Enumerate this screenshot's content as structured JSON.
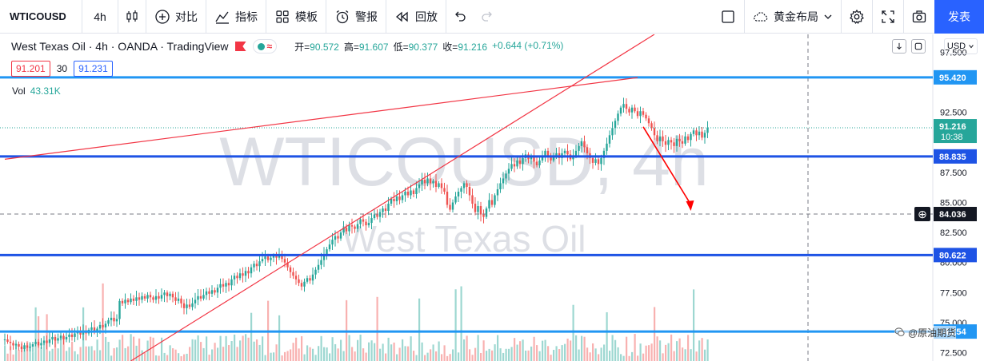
{
  "toolbar": {
    "symbol": "WTICOUSD",
    "interval": "4h",
    "compare_label": "对比",
    "indicators_label": "指标",
    "templates_label": "模板",
    "alert_label": "警报",
    "replay_label": "回放",
    "layout_label": "黄金布局",
    "publish_label": "发表"
  },
  "legend": {
    "title": "West Texas Oil · 4h · OANDA · TradingView",
    "open_label": "开=",
    "open": "90.572",
    "high_label": "高=",
    "high": "91.607",
    "low_label": "低=",
    "low": "90.377",
    "close_label": "收=",
    "close": "91.216",
    "change": "+0.644 (+0.71%)",
    "bid": "91.201",
    "spread": "30",
    "ask": "91.231",
    "vol_label": "Vol",
    "vol_value": "43.31K",
    "currency": "USD"
  },
  "watermark": {
    "symbol": "WTICOUSD, 4h",
    "name": "West Texas Oil",
    "account": "@原油期货"
  },
  "colors": {
    "up": "#26a69a",
    "down": "#ef5350",
    "level_line": "#1e53e5",
    "level_line_light": "#2196f3",
    "trend_line": "#f23645",
    "accent": "#2962ff"
  },
  "chart_data": {
    "type": "candlestick",
    "ylim": [
      71.8,
      99.0
    ],
    "y_ticks": [
      "97.500",
      "92.500",
      "87.500",
      "85.000",
      "82.500",
      "80.000",
      "77.500",
      "75.000",
      "72.500"
    ],
    "last_price": "91.216",
    "countdown": "10:38",
    "crosshair_price": "84.036",
    "levels": [
      {
        "value": 95.42,
        "label": "95.420",
        "style": "light"
      },
      {
        "value": 88.835,
        "label": "88.835",
        "style": "dark"
      },
      {
        "value": 80.622,
        "label": "80.622",
        "style": "dark"
      },
      {
        "value": 74.254,
        "label": "74.254",
        "style": "light"
      }
    ],
    "trend_lines": [
      {
        "from": [
          0,
          88.6
        ],
        "to": [
          226,
          95.4
        ]
      },
      {
        "from": [
          45,
          71.8
        ],
        "to": [
          232,
          99.0
        ]
      }
    ],
    "arrow": {
      "from": [
        228,
        91.3
      ],
      "to": [
        245,
        84.3
      ]
    },
    "close_series": [
      73.6,
      73.4,
      73.3,
      73.1,
      73.2,
      73.0,
      72.8,
      73.1,
      72.9,
      73.0,
      73.2,
      73.4,
      73.1,
      73.3,
      73.5,
      73.3,
      73.6,
      73.8,
      73.5,
      73.7,
      73.9,
      73.6,
      73.8,
      74.0,
      73.8,
      74.1,
      74.2,
      74.0,
      74.3,
      74.1,
      74.4,
      74.6,
      74.3,
      74.5,
      74.8,
      74.6,
      74.9,
      75.2,
      75.4,
      75.1,
      75.3,
      76.8,
      76.6,
      76.9,
      76.7,
      77.0,
      76.8,
      77.1,
      76.9,
      77.2,
      77.0,
      77.3,
      77.1,
      76.9,
      77.2,
      77.0,
      77.3,
      77.5,
      77.2,
      77.4,
      77.1,
      76.8,
      77.0,
      76.6,
      76.2,
      76.5,
      76.3,
      76.6,
      76.9,
      77.2,
      77.0,
      77.3,
      77.6,
      77.4,
      77.7,
      77.5,
      77.9,
      78.2,
      78.0,
      78.3,
      78.1,
      78.6,
      78.9,
      78.7,
      79.1,
      78.9,
      79.3,
      79.1,
      79.6,
      79.9,
      79.7,
      80.1,
      80.3,
      80.5,
      80.2,
      80.4,
      80.6,
      80.4,
      80.7,
      80.3,
      80.0,
      79.6,
      79.2,
      78.9,
      78.6,
      78.3,
      78.0,
      78.4,
      78.7,
      78.5,
      79.0,
      79.4,
      79.8,
      80.2,
      80.7,
      81.1,
      81.5,
      81.9,
      82.2,
      82.0,
      82.5,
      82.9,
      82.6,
      83.1,
      83.0,
      82.8,
      83.2,
      83.6,
      83.4,
      83.1,
      83.3,
      83.7,
      84.0,
      83.8,
      84.2,
      84.5,
      84.3,
      84.9,
      85.3,
      85.1,
      85.5,
      85.2,
      85.6,
      85.9,
      85.6,
      86.0,
      85.7,
      86.2,
      86.5,
      86.9,
      86.6,
      87.0,
      86.6,
      86.8,
      86.3,
      86.6,
      86.2,
      85.9,
      84.8,
      84.4,
      85.0,
      85.5,
      85.9,
      86.2,
      86.6,
      86.3,
      85.6,
      84.9,
      84.2,
      84.7,
      84.0,
      83.8,
      84.5,
      85.2,
      84.8,
      85.6,
      86.1,
      86.6,
      87.0,
      87.4,
      87.8,
      88.2,
      88.0,
      88.5,
      88.2,
      88.7,
      89.0,
      88.6,
      88.9,
      88.4,
      88.1,
      88.5,
      88.9,
      89.3,
      88.9,
      88.5,
      88.9,
      89.1,
      88.7,
      89.1,
      89.3,
      89.0,
      88.6,
      88.9,
      89.3,
      89.7,
      90.1,
      89.6,
      89.1,
      88.7,
      88.3,
      88.6,
      88.2,
      88.7,
      89.3,
      89.9,
      90.6,
      91.2,
      91.8,
      92.4,
      92.9,
      93.2,
      92.8,
      92.5,
      92.9,
      92.6,
      92.2,
      92.6,
      92.3,
      92.0,
      91.6,
      91.2,
      90.6,
      90.1,
      90.5,
      90.1,
      89.8,
      90.2,
      90.0,
      89.7,
      90.3,
      90.1,
      89.9,
      90.5,
      90.2,
      90.7,
      91.0,
      90.6,
      90.9,
      90.4,
      90.8,
      91.2
    ]
  }
}
